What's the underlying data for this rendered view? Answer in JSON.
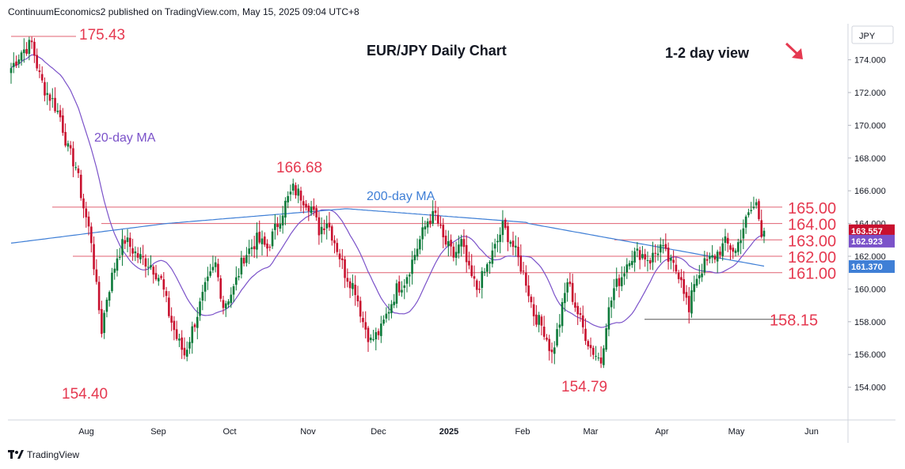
{
  "header": {
    "text": "ContinuumEconomics2 published on TradingView.com, May 15, 2025 09:04 UTC+8"
  },
  "footer": {
    "brand": "TradingView"
  },
  "colors": {
    "up": "#0c7a3a",
    "down": "#c8102e",
    "ma20": "#7b52c9",
    "ma200": "#3f7fd6",
    "level_text": "#e53950",
    "level_line": "#e06070",
    "title": "#131722"
  },
  "chart_data": {
    "type": "candlestick",
    "title": "EUR/JPY Daily Chart",
    "subtitle": "1-2 day view",
    "direction_icon": "arrow-down-right-icon",
    "currency_label": "JPY",
    "ylim": [
      152,
      176
    ],
    "y_ticks": [
      "154.000",
      "156.000",
      "158.000",
      "160.000",
      "162.000",
      "164.000",
      "166.000",
      "168.000",
      "170.000",
      "172.000",
      "174.000"
    ],
    "x_ticks": [
      "Aug",
      "Sep",
      "Oct",
      "Nov",
      "Dec",
      "2025",
      "Feb",
      "Mar",
      "Apr",
      "May",
      "Jun"
    ],
    "levels": [
      {
        "value": 165.0,
        "label": "165.00"
      },
      {
        "value": 164.0,
        "label": "164.00"
      },
      {
        "value": 163.0,
        "label": "163.00"
      },
      {
        "value": 162.0,
        "label": "162.00"
      },
      {
        "value": 161.0,
        "label": "161.00"
      },
      {
        "value": 158.15,
        "label": "158.15"
      }
    ],
    "annotations": [
      {
        "label": "175.43",
        "value": 175.43
      },
      {
        "label": "154.40",
        "value": 154.4
      },
      {
        "label": "166.68",
        "value": 166.68
      },
      {
        "label": "154.79",
        "value": 154.79
      }
    ],
    "series_labels": {
      "ma20": "20-day MA",
      "ma200": "200-day MA"
    },
    "price_badges": [
      {
        "value": 163.557,
        "label": "163.557",
        "color": "#c8102e"
      },
      {
        "value": 162.923,
        "label": "162.923",
        "color": "#7b52c9"
      },
      {
        "value": 161.37,
        "label": "161.370",
        "color": "#3f7fd6"
      }
    ],
    "close_path": [
      [
        0,
        173.5
      ],
      [
        4,
        174.5
      ],
      [
        8,
        175.0
      ],
      [
        11,
        173.0
      ],
      [
        13,
        172.2
      ],
      [
        16,
        171.5
      ],
      [
        19,
        170.5
      ],
      [
        22,
        168.5
      ],
      [
        25,
        167.5
      ],
      [
        28,
        165.0
      ],
      [
        31,
        163.0
      ],
      [
        33,
        160.0
      ],
      [
        35,
        157.5
      ],
      [
        37,
        159.5
      ],
      [
        41,
        162.0
      ],
      [
        44,
        163.0
      ],
      [
        49,
        162.0
      ],
      [
        54,
        161.5
      ],
      [
        58,
        160.5
      ],
      [
        61,
        158.5
      ],
      [
        64,
        157.0
      ],
      [
        67,
        156.0
      ],
      [
        71,
        158.0
      ],
      [
        75,
        160.0
      ],
      [
        79,
        161.5
      ],
      [
        82,
        159.0
      ],
      [
        86,
        160.0
      ],
      [
        90,
        162.0
      ],
      [
        95,
        163.0
      ],
      [
        99,
        162.5
      ],
      [
        103,
        164.0
      ],
      [
        106,
        165.2
      ],
      [
        109,
        166.1
      ],
      [
        112,
        165.7
      ],
      [
        116,
        165.0
      ],
      [
        119,
        163.6
      ],
      [
        122,
        164.2
      ],
      [
        126,
        162.5
      ],
      [
        129,
        161.0
      ],
      [
        133,
        160.0
      ],
      [
        136,
        158.0
      ],
      [
        139,
        156.8
      ],
      [
        143,
        157.5
      ],
      [
        146,
        158.8
      ],
      [
        149,
        160.0
      ],
      [
        152,
        160.5
      ],
      [
        155,
        161.7
      ],
      [
        158,
        163.0
      ],
      [
        161,
        164.2
      ],
      [
        164,
        164.5
      ],
      [
        167,
        163.0
      ],
      [
        171,
        162.0
      ],
      [
        174,
        162.8
      ],
      [
        177,
        161.0
      ],
      [
        180,
        160.0
      ],
      [
        183,
        161.0
      ],
      [
        187,
        162.5
      ],
      [
        190,
        163.8
      ],
      [
        193,
        163.0
      ],
      [
        196,
        161.8
      ],
      [
        199,
        160.5
      ],
      [
        202,
        158.5
      ],
      [
        206,
        157.5
      ],
      [
        209,
        156.0
      ],
      [
        212,
        158.0
      ],
      [
        215,
        160.5
      ],
      [
        218,
        159.0
      ],
      [
        221,
        157.6
      ],
      [
        224,
        156.4
      ],
      [
        226,
        156.0
      ],
      [
        228,
        155.6
      ],
      [
        230,
        158.0
      ],
      [
        233,
        160.0
      ],
      [
        236,
        160.8
      ],
      [
        239,
        162.0
      ],
      [
        243,
        162.2
      ],
      [
        247,
        161.8
      ],
      [
        251,
        162.6
      ],
      [
        255,
        161.5
      ],
      [
        259,
        160.8
      ],
      [
        262,
        158.5
      ],
      [
        264,
        160.5
      ],
      [
        268,
        161.5
      ],
      [
        272,
        162.0
      ],
      [
        276,
        162.8
      ],
      [
        280,
        162.3
      ],
      [
        283,
        163.8
      ],
      [
        286,
        164.8
      ],
      [
        288,
        165.2
      ],
      [
        290,
        163.55
      ]
    ]
  }
}
